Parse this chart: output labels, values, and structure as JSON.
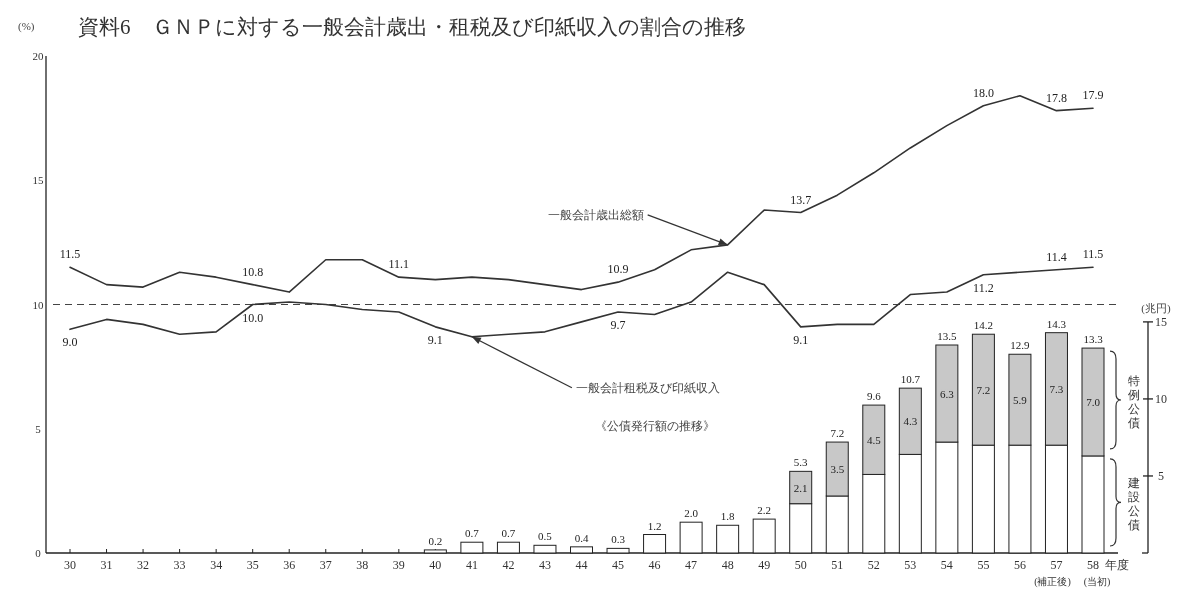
{
  "chart_data": {
    "type": "bar",
    "title": "資料6　ＧＮＰに対する一般会計歳出・租税及び印紙収入の割合の推移",
    "ylabel": "(%)",
    "y2label": "(兆円)",
    "categories": [
      "30",
      "31",
      "32",
      "33",
      "34",
      "35",
      "36",
      "37",
      "38",
      "39",
      "40",
      "41",
      "42",
      "43",
      "44",
      "45",
      "46",
      "47",
      "48",
      "49",
      "50",
      "51",
      "52",
      "53",
      "54",
      "55",
      "56",
      "57",
      "58"
    ],
    "ylim": [
      0,
      20
    ],
    "yticks": [
      0,
      5,
      10,
      15,
      20
    ],
    "y2lim": [
      0,
      15
    ],
    "y2ticks": [
      5,
      10,
      15
    ],
    "stacked": true,
    "legend": false,
    "grid": false,
    "marker": "none",
    "ref_lines": [
      {
        "axis": "y",
        "value": 10,
        "line_style": "dashed",
        "color": "#444444"
      }
    ],
    "series": [
      {
        "name": "建設公債",
        "axis": "y2",
        "color": "#ffffff",
        "values": [
          null,
          null,
          null,
          null,
          null,
          null,
          null,
          null,
          null,
          null,
          0.2,
          0.7,
          0.7,
          0.5,
          0.4,
          0.3,
          1.2,
          2.0,
          1.8,
          2.2,
          3.2,
          3.7,
          5.1,
          6.4,
          7.2,
          7.0,
          7.0,
          7.0,
          6.3
        ]
      },
      {
        "name": "特例公債",
        "axis": "y2",
        "color": "#c8c8c8",
        "values": [
          null,
          null,
          null,
          null,
          null,
          null,
          null,
          null,
          null,
          null,
          null,
          null,
          null,
          null,
          null,
          null,
          null,
          null,
          null,
          null,
          2.1,
          3.5,
          4.5,
          4.3,
          6.3,
          7.2,
          5.9,
          7.3,
          7.0
        ],
        "value_labels": [
          null,
          null,
          null,
          null,
          null,
          null,
          null,
          null,
          null,
          null,
          null,
          null,
          null,
          null,
          null,
          null,
          null,
          null,
          null,
          null,
          "2.1",
          "3.5",
          "4.5",
          "4.3",
          "6.3",
          "7.2",
          "5.9",
          "7.3",
          "7.0"
        ]
      },
      {
        "type": "line",
        "color": "#333333",
        "line_style": "solid",
        "values": [
          11.5,
          10.8,
          10.7,
          11.3,
          11.1,
          10.8,
          10.5,
          11.8,
          11.8,
          11.1,
          11.0,
          11.1,
          11.0,
          10.8,
          10.6,
          10.9,
          11.4,
          12.2,
          12.4,
          13.8,
          13.7,
          14.4,
          15.3,
          16.3,
          17.2,
          18.0,
          18.4,
          17.8,
          17.9
        ],
        "value_labels": [
          "11.5",
          null,
          null,
          null,
          null,
          "10.8",
          null,
          null,
          null,
          "11.1",
          null,
          null,
          null,
          null,
          null,
          "10.9",
          null,
          null,
          null,
          null,
          "13.7",
          null,
          null,
          null,
          null,
          "18.0",
          null,
          "17.8",
          "17.9"
        ]
      },
      {
        "type": "line",
        "color": "#333333",
        "line_style": "solid",
        "values": [
          9.0,
          9.4,
          9.2,
          8.8,
          8.9,
          10.0,
          10.1,
          10.0,
          9.8,
          9.7,
          9.1,
          8.7,
          8.8,
          8.9,
          9.3,
          9.7,
          9.6,
          10.1,
          11.3,
          10.8,
          9.1,
          9.2,
          9.2,
          10.4,
          10.5,
          11.2,
          11.3,
          11.4,
          11.5
        ],
        "value_labels": [
          "9.0",
          null,
          null,
          null,
          null,
          "10.0",
          null,
          null,
          null,
          null,
          "9.1",
          null,
          null,
          null,
          null,
          "9.7",
          null,
          null,
          null,
          null,
          "9.1",
          null,
          null,
          null,
          null,
          "11.2",
          null,
          "11.4",
          "11.5"
        ]
      }
    ],
    "totals": [
      null,
      null,
      null,
      null,
      null,
      null,
      null,
      null,
      null,
      null,
      "0.2",
      "0.7",
      "0.7",
      "0.5",
      "0.4",
      "0.3",
      "1.2",
      "2.0",
      "1.8",
      "2.2",
      "5.3",
      "7.2",
      "9.6",
      "10.7",
      "13.5",
      "14.2",
      "12.9",
      "14.3",
      "13.3"
    ],
    "annotations": [
      {
        "text": "一般会計歳出総額",
        "x": "48",
        "y": 12.4
      },
      {
        "text": "一般会計租税及び印紙収入",
        "x": "41",
        "y": 8.7
      },
      "《公債発行額の推移》",
      "年度",
      "(補正後)",
      "(当初)"
    ]
  }
}
